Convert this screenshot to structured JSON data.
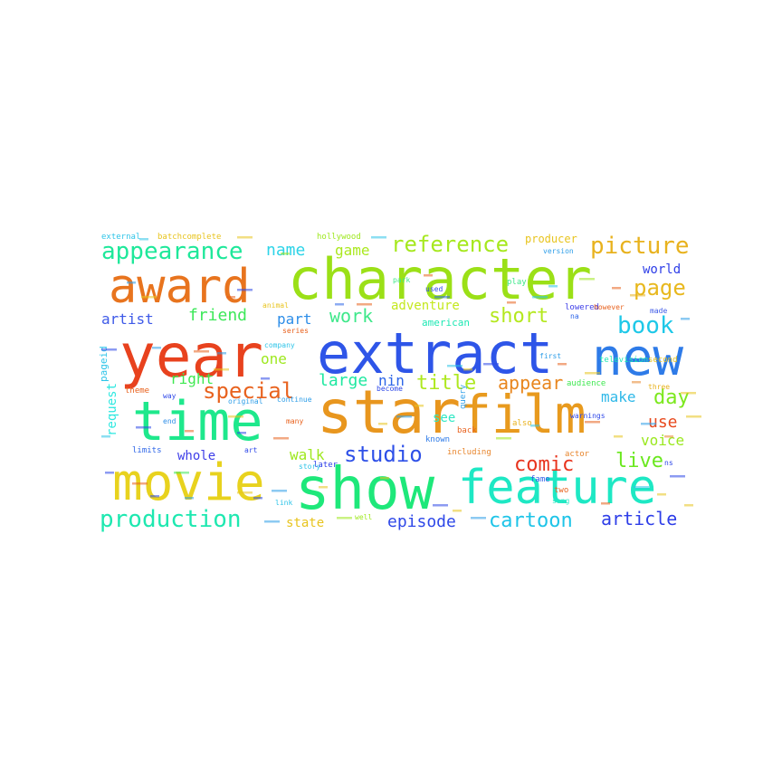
{
  "words": [
    {
      "text": "character",
      "color": "#9be017"
    },
    {
      "text": "award",
      "color": "#e8741e"
    },
    {
      "text": "extract",
      "color": "#2e55e8"
    },
    {
      "text": "year",
      "color": "#e8421e"
    },
    {
      "text": "new",
      "color": "#2e7be8"
    },
    {
      "text": "star",
      "color": "#e8961e"
    },
    {
      "text": "film",
      "color": "#e89a1e"
    },
    {
      "text": "time",
      "color": "#1ee88c"
    },
    {
      "text": "show",
      "color": "#1ee87a"
    },
    {
      "text": "movie",
      "color": "#e8d21e"
    },
    {
      "text": "feature",
      "color": "#1ee8c4"
    },
    {
      "text": "appearance",
      "color": "#1ee89a"
    },
    {
      "text": "reference",
      "color": "#a6e81e"
    },
    {
      "text": "picture",
      "color": "#e8b21e"
    },
    {
      "text": "page",
      "color": "#e8b81e"
    },
    {
      "text": "book",
      "color": "#1ec8e8"
    },
    {
      "text": "special",
      "color": "#e8621e"
    },
    {
      "text": "studio",
      "color": "#2e50e8"
    },
    {
      "text": "production",
      "color": "#1ee8b0"
    },
    {
      "text": "short",
      "color": "#b4e81e"
    },
    {
      "text": "day",
      "color": "#7ce81e"
    },
    {
      "text": "work",
      "color": "#3ee88a"
    },
    {
      "text": "comic",
      "color": "#e8341e"
    },
    {
      "text": "live",
      "color": "#6ae81e"
    },
    {
      "text": "cartoon",
      "color": "#1ec4e8"
    },
    {
      "text": "article",
      "color": "#2e3ee8"
    },
    {
      "text": "episode",
      "color": "#2e48e8"
    },
    {
      "text": "title",
      "color": "#aee81e"
    },
    {
      "text": "appear",
      "color": "#e8861e"
    },
    {
      "text": "friend",
      "color": "#3ee85a"
    },
    {
      "text": "name",
      "color": "#2ed4e8"
    },
    {
      "text": "game",
      "color": "#aae81e"
    },
    {
      "text": "adventure",
      "color": "#c4e81e"
    },
    {
      "text": "artist",
      "color": "#3e5ae8"
    },
    {
      "text": "part",
      "color": "#2e8ee8"
    },
    {
      "text": "large",
      "color": "#1ee8a0"
    },
    {
      "text": "nin",
      "color": "#2e66e8"
    },
    {
      "text": "right",
      "color": "#3ee850"
    },
    {
      "text": "one",
      "color": "#9ee81e"
    },
    {
      "text": "make",
      "color": "#2eb8e8"
    },
    {
      "text": "use",
      "color": "#e84a1e"
    },
    {
      "text": "voice",
      "color": "#9ae81e"
    },
    {
      "text": "walk",
      "color": "#9ee81e"
    },
    {
      "text": "whole",
      "color": "#3e3ee8"
    },
    {
      "text": "see",
      "color": "#2ee8c4"
    },
    {
      "text": "state",
      "color": "#e8c41e"
    },
    {
      "text": "world",
      "color": "#2e3ee8"
    },
    {
      "text": "request",
      "color": "#2ee8e0"
    },
    {
      "text": "pageid",
      "color": "#2ec4e8"
    },
    {
      "text": "american",
      "color": "#1ee8b4"
    },
    {
      "text": "producer",
      "color": "#e8c41e"
    },
    {
      "text": "external",
      "color": "#2ec4e8"
    },
    {
      "text": "batchcomplete",
      "color": "#e8c41e"
    },
    {
      "text": "hollywood",
      "color": "#9ee81e"
    },
    {
      "text": "version",
      "color": "#2e9ee8"
    },
    {
      "text": "play",
      "color": "#3ee88a"
    },
    {
      "text": "lowered",
      "color": "#3e3ee8"
    },
    {
      "text": "television",
      "color": "#1ee8b4"
    },
    {
      "text": "second",
      "color": "#e8c41e"
    },
    {
      "text": "na",
      "color": "#2e66e8"
    },
    {
      "text": "however",
      "color": "#e8621e"
    },
    {
      "text": "made",
      "color": "#3e5ae8"
    },
    {
      "text": "audience",
      "color": "#3ee850"
    },
    {
      "text": "first",
      "color": "#2e9ee8"
    },
    {
      "text": "three",
      "color": "#e8b21e"
    },
    {
      "text": "warnings",
      "color": "#2e48e8"
    },
    {
      "text": "actor",
      "color": "#e8862e"
    },
    {
      "text": "fame",
      "color": "#2e5ae8"
    },
    {
      "text": "two",
      "color": "#e8621e"
    },
    {
      "text": "song",
      "color": "#2ee8c4"
    },
    {
      "text": "ns",
      "color": "#2e48e8"
    },
    {
      "text": "including",
      "color": "#e8862e"
    },
    {
      "text": "known",
      "color": "#2e7be8"
    },
    {
      "text": "later",
      "color": "#2e3ee8"
    },
    {
      "text": "back",
      "color": "#e8621e"
    },
    {
      "text": "also",
      "color": "#e8b21e"
    },
    {
      "text": "story",
      "color": "#2ec4e8"
    },
    {
      "text": "link",
      "color": "#2ec4e8"
    },
    {
      "text": "well",
      "color": "#9ee81e"
    },
    {
      "text": "limits",
      "color": "#2e66e8"
    },
    {
      "text": "end",
      "color": "#2e8ee8"
    },
    {
      "text": "art",
      "color": "#2e48e8"
    },
    {
      "text": "many",
      "color": "#e8621e"
    },
    {
      "text": "continue",
      "color": "#2e9ee8"
    },
    {
      "text": "original",
      "color": "#2e9ee8"
    },
    {
      "text": "way",
      "color": "#2e48e8"
    },
    {
      "text": "theme",
      "color": "#e8621e"
    },
    {
      "text": "company",
      "color": "#2ec4e8"
    },
    {
      "text": "series",
      "color": "#e8621e"
    },
    {
      "text": "animal",
      "color": "#e8c41e"
    },
    {
      "text": "park",
      "color": "#3ee88a"
    },
    {
      "text": "used",
      "color": "#2e48e8"
    },
    {
      "text": "become",
      "color": "#2e48e8"
    },
    {
      "text": "query",
      "color": "#2e9ee8"
    }
  ]
}
